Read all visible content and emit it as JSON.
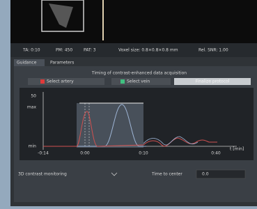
{
  "status": [
    "TA: 0:10",
    "PM: 450",
    "PAT: 3",
    "Voxel size: 0.8×0.8×0.8 mm",
    "Rel. SNR: 1.00"
  ],
  "tabs": [
    "Guidance",
    "Parameters"
  ],
  "panel_title": "Timing of contrast-enhanced data acquisition",
  "buttons": [
    "Select artery",
    "Select vein",
    "Finalize protocol"
  ],
  "graph": {
    "y_labels": [
      "50",
      "max",
      "min"
    ],
    "x_labels": [
      "-0:14",
      "0:00",
      "0:10",
      "0:40"
    ],
    "x_unit": "t [min]"
  },
  "footer": {
    "monitoring": "3D contrast monitoring",
    "time_label": "Time to center",
    "time_value": "0.0"
  }
}
